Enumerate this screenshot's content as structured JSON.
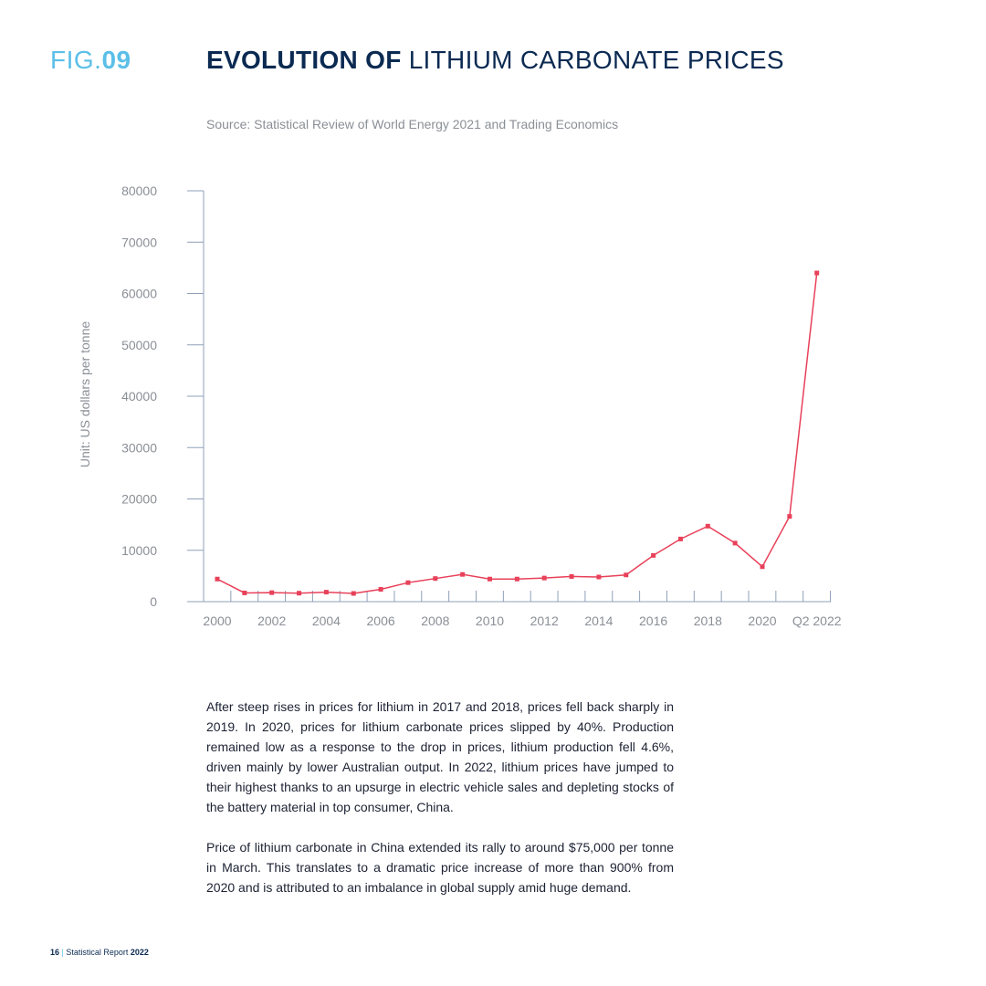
{
  "header": {
    "fig_prefix": "FIG.",
    "fig_number": "09",
    "title_bold": "EVOLUTION OF",
    "title_rest": " LITHIUM CARBONATE PRICES",
    "source": "Source:  Statistical Review of World Energy 2021 and Trading Economics"
  },
  "chart_data": {
    "type": "line",
    "title": "EVOLUTION OF LITHIUM CARBONATE PRICES",
    "ylabel": "Unit: US dollars per tonne",
    "xlabel": "",
    "ylim": [
      0,
      80000
    ],
    "yticks": [
      0,
      10000,
      20000,
      30000,
      40000,
      50000,
      60000,
      70000,
      80000
    ],
    "categories": [
      "2000",
      "2001",
      "2002",
      "2003",
      "2004",
      "2005",
      "2006",
      "2007",
      "2008",
      "2009",
      "2010",
      "2011",
      "2012",
      "2013",
      "2014",
      "2015",
      "2016",
      "2017",
      "2018",
      "2019",
      "2020",
      "2021",
      "Q2 2022"
    ],
    "xtick_labels": [
      "2000",
      "",
      "2002",
      "",
      "2004",
      "",
      "2006",
      "",
      "2008",
      "",
      "2010",
      "",
      "2012",
      "",
      "2014",
      "",
      "2016",
      "",
      "2018",
      "",
      "2020",
      "",
      "Q2 2022"
    ],
    "values": [
      4400,
      1700,
      1750,
      1650,
      1850,
      1600,
      2400,
      3700,
      4500,
      5300,
      4400,
      4400,
      4600,
      4900,
      4800,
      5200,
      9000,
      12200,
      14700,
      11400,
      6800,
      16600,
      64000
    ],
    "grid": false,
    "line_color": "#e8415a"
  },
  "body": {
    "para1": "After steep rises in prices for lithium in 2017 and 2018, prices fell back sharply in 2019. In 2020, prices for lithium carbonate prices slipped by 40%. Production remained low as a response to the drop in prices, lithium production fell 4.6%, driven mainly by lower Australian output. In 2022, lithium prices have jumped to their highest thanks to an upsurge in electric vehicle sales and depleting stocks of the battery material in top consumer, China.",
    "para2": "Price of lithium carbonate in China extended its rally to around $75,000 per tonne in March. This translates to a dramatic price increase of more than 900% from 2020 and is attributed to an imbalance in global supply amid huge demand."
  },
  "footer": {
    "page_number": "16",
    "separator": " | ",
    "report_name": "Statistical Report ",
    "report_year": "2022"
  }
}
